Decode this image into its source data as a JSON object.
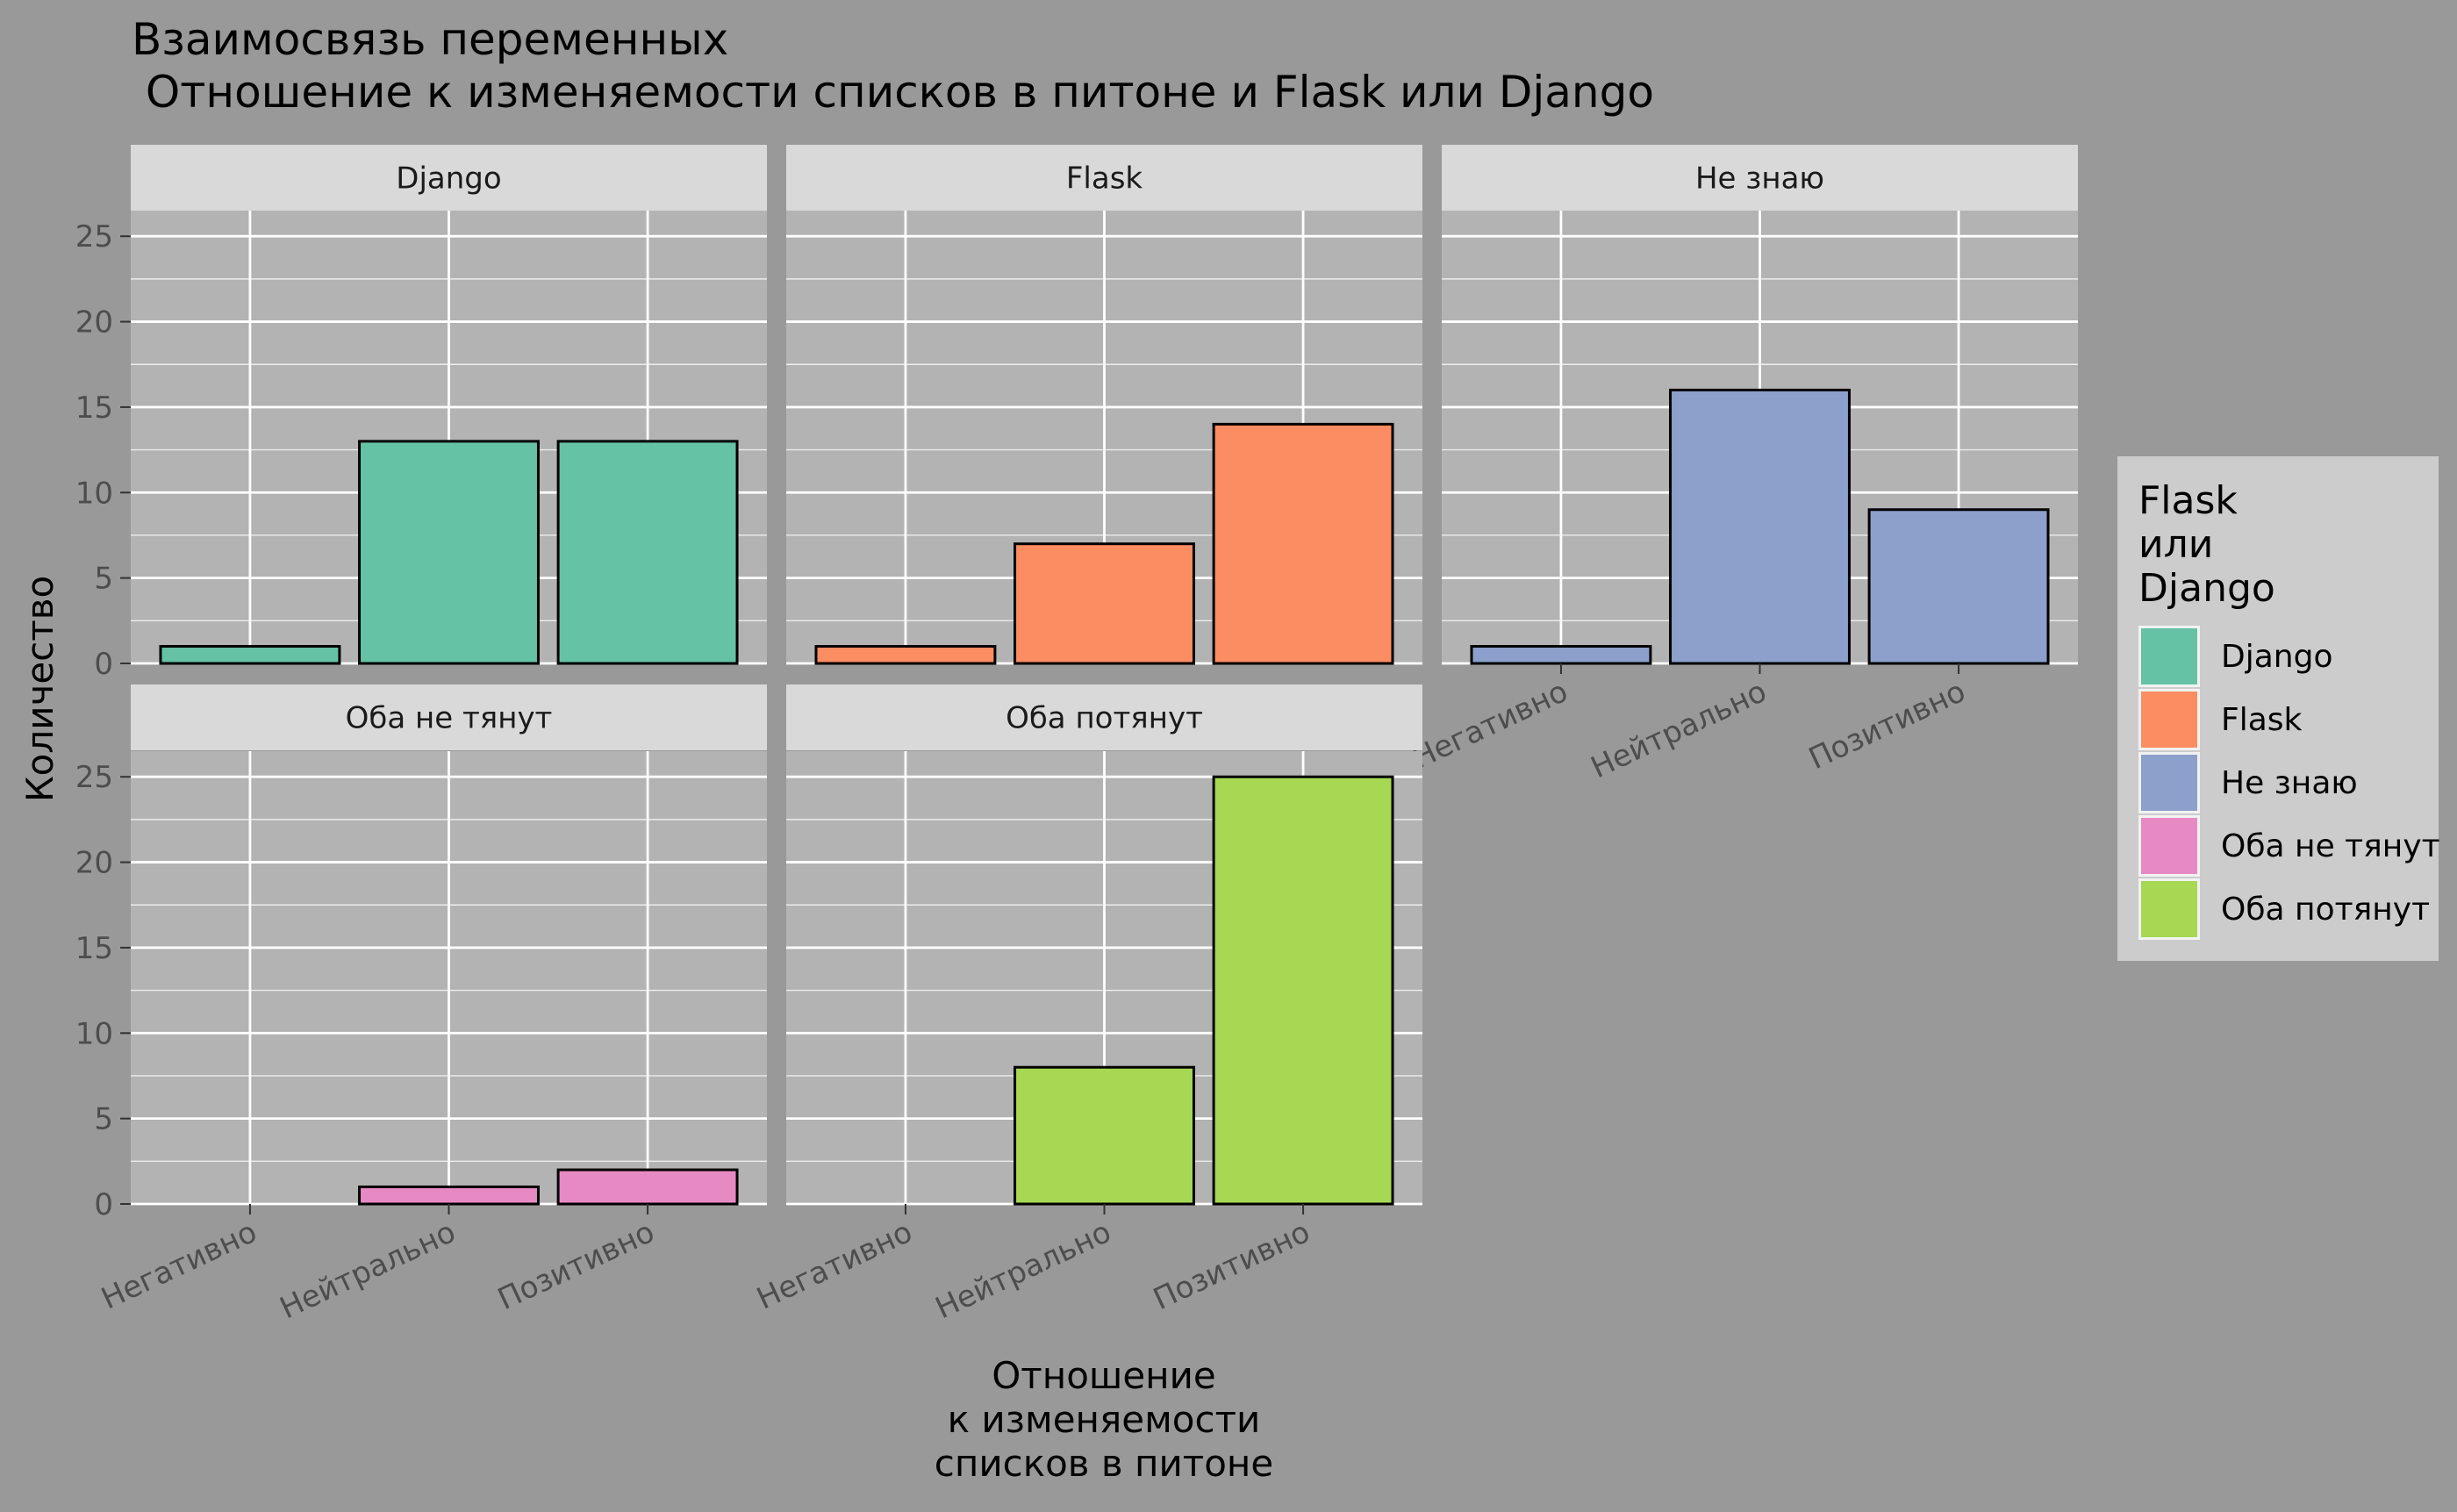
{
  "chart_data": {
    "type": "bar",
    "title_line1": "Взаимосвязь переменных",
    "title_line2": " Отношение к изменяемости списков в питоне и Flask или Django",
    "xlabel_lines": [
      "Отношение",
      "к изменяемости",
      "списков в питоне"
    ],
    "ylabel": "Количество",
    "categories": [
      "Негативно",
      "Нейтрально",
      "Позитивно"
    ],
    "ylim": [
      0,
      26.5
    ],
    "yticks": [
      0,
      5,
      10,
      15,
      20,
      25
    ],
    "facets": [
      {
        "name": "Django",
        "color": "#66c2a5",
        "values": [
          1,
          13,
          13
        ]
      },
      {
        "name": "Flask",
        "color": "#fc8d62",
        "values": [
          1,
          7,
          14
        ]
      },
      {
        "name": "Не знаю",
        "color": "#8da0cb",
        "values": [
          1,
          16,
          9
        ]
      },
      {
        "name": "Оба не тянут",
        "color": "#e78ac3",
        "values": [
          0,
          1,
          2
        ]
      },
      {
        "name": "Оба потянут",
        "color": "#a6d854",
        "values": [
          0,
          8,
          25
        ]
      }
    ],
    "legend": {
      "title_lines": [
        "Flask",
        "или",
        "Django"
      ],
      "placement": "right",
      "items": [
        "Django",
        "Flask",
        "Не знаю",
        "Оба не тянут",
        "Оба потянут"
      ]
    },
    "grid": true
  }
}
